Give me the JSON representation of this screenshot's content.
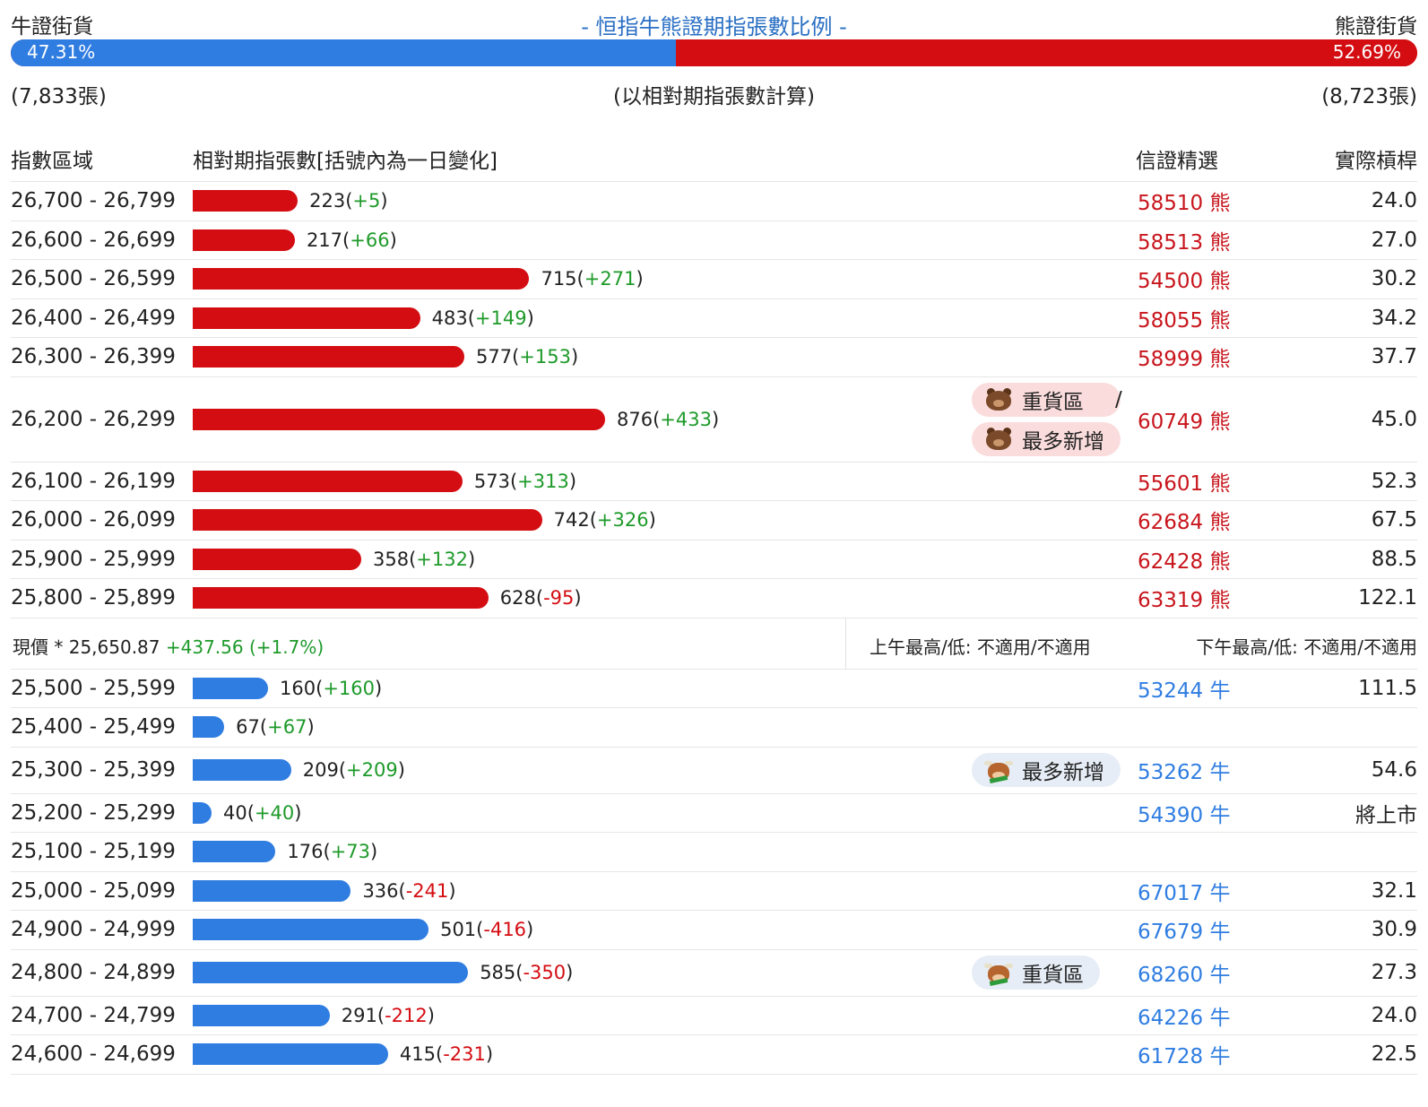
{
  "summary": {
    "bull_label": "牛證街貨",
    "bear_label": "熊證街貨",
    "title": "- 恒指牛熊證期指張數比例 -",
    "bull_pct": "47.31%",
    "bear_pct": "52.69%",
    "bull_fraction": 0.4731,
    "bull_count": "(7,833張)",
    "bear_count": "(8,723張)",
    "note": "(以相對期指張數計算)"
  },
  "headers": {
    "range": "指數區域",
    "contracts": "相對期指張數[括號內為一日變化]",
    "pick": "信證精選",
    "leverage": "實際槓桿"
  },
  "max_value": 876,
  "bear_rows": [
    {
      "range": "26,700 - 26,799",
      "value": 223,
      "value_text": "223",
      "change": "+5",
      "pick": "58510 熊",
      "leverage": "24.0"
    },
    {
      "range": "26,600 - 26,699",
      "value": 217,
      "value_text": "217",
      "change": "+66",
      "pick": "58513 熊",
      "leverage": "27.0"
    },
    {
      "range": "26,500 - 26,599",
      "value": 715,
      "value_text": "715",
      "change": "+271",
      "pick": "54500 熊",
      "leverage": "30.2"
    },
    {
      "range": "26,400 - 26,499",
      "value": 483,
      "value_text": "483",
      "change": "+149",
      "pick": "58055 熊",
      "leverage": "34.2"
    },
    {
      "range": "26,300 - 26,399",
      "value": 577,
      "value_text": "577",
      "change": "+153",
      "pick": "58999 熊",
      "leverage": "37.7"
    },
    {
      "range": "26,200 - 26,299",
      "value": 876,
      "value_text": "876",
      "change": "+433",
      "pick": "60749 熊",
      "leverage": "45.0",
      "badges": [
        "重貨區",
        "最多新增"
      ],
      "slash": "/"
    },
    {
      "range": "26,100 - 26,199",
      "value": 573,
      "value_text": "573",
      "change": "+313",
      "pick": "55601 熊",
      "leverage": "52.3"
    },
    {
      "range": "26,000 - 26,099",
      "value": 742,
      "value_text": "742",
      "change": "+326",
      "pick": "62684 熊",
      "leverage": "67.5"
    },
    {
      "range": "25,900 - 25,999",
      "value": 358,
      "value_text": "358",
      "change": "+132",
      "pick": "62428 熊",
      "leverage": "88.5"
    },
    {
      "range": "25,800 - 25,899",
      "value": 628,
      "value_text": "628",
      "change": "-95",
      "pick": "63319 熊",
      "leverage": "122.1"
    }
  ],
  "price": {
    "label": "現價 *",
    "value": "25,650.87",
    "change": "+437.56 (+1.7%)",
    "am": "上午最高/低: 不適用/不適用",
    "pm": "下午最高/低: 不適用/不適用"
  },
  "bull_rows": [
    {
      "range": "25,500 - 25,599",
      "value": 160,
      "value_text": "160",
      "change": "+160",
      "pick": "53244 牛",
      "leverage": "111.5"
    },
    {
      "range": "25,400 - 25,499",
      "value": 67,
      "value_text": "67",
      "change": "+67",
      "pick": "",
      "leverage": ""
    },
    {
      "range": "25,300 - 25,399",
      "value": 209,
      "value_text": "209",
      "change": "+209",
      "pick": "53262 牛",
      "leverage": "54.6",
      "badges": [
        "最多新增"
      ]
    },
    {
      "range": "25,200 - 25,299",
      "value": 40,
      "value_text": "40",
      "change": "+40",
      "pick": "54390 牛",
      "leverage": "將上市"
    },
    {
      "range": "25,100 - 25,199",
      "value": 176,
      "value_text": "176",
      "change": "+73",
      "pick": "",
      "leverage": ""
    },
    {
      "range": "25,000 - 25,099",
      "value": 336,
      "value_text": "336",
      "change": "-241",
      "pick": "67017 牛",
      "leverage": "32.1"
    },
    {
      "range": "24,900 - 24,999",
      "value": 501,
      "value_text": "501",
      "change": "-416",
      "pick": "67679 牛",
      "leverage": "30.9"
    },
    {
      "range": "24,800 - 24,899",
      "value": 585,
      "value_text": "585",
      "change": "-350",
      "pick": "68260 牛",
      "leverage": "27.3",
      "badges": [
        "重貨區"
      ]
    },
    {
      "range": "24,700 - 24,799",
      "value": 291,
      "value_text": "291",
      "change": "-212",
      "pick": "64226 牛",
      "leverage": "24.0"
    },
    {
      "range": "24,600 - 24,699",
      "value": 415,
      "value_text": "415",
      "change": "-231",
      "pick": "61728 牛",
      "leverage": "22.5"
    }
  ],
  "colors": {
    "bear": "#d40d12",
    "bull": "#2f7de1",
    "pos": "#1e9a2a",
    "neg": "#d40d12"
  },
  "icons": {
    "bear_badge": "bear-face-icon",
    "bull_badge": "bull-face-icon"
  }
}
